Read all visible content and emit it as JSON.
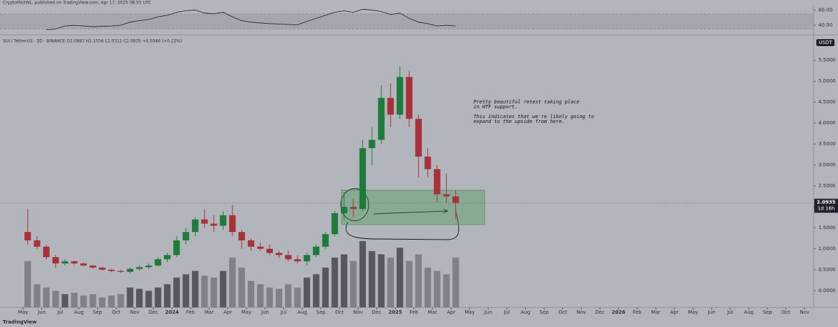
{
  "chart_data": {
    "type": "candlestick",
    "author_line": "CryptoMichNL, published on TradingView.com, Apr 17, 2025 08:55 UTC",
    "symbol_line": "SUI / TetherUS · 3D · BINANCE  O2.0887 H2.1556 L2.0312 C2.0935 +0.0046 (+0.22%)",
    "currency": "USDT",
    "last_price": 2.0935,
    "countdown": "1d 16h",
    "brand": "TradingView",
    "annotation": [
      "Pretty beautiful retest taking place",
      "in HTF support.",
      "This indicates that we're likely going to",
      "expand to the upside from here."
    ],
    "support_zone": [
      1.58,
      2.4
    ],
    "up_color": "#1e7b3c",
    "down_color": "#a8323a",
    "x": [
      0.25,
      0.75,
      1.25,
      1.75,
      2.25,
      2.75,
      3.25,
      3.75,
      4.25,
      4.75,
      5.25,
      5.75,
      6.25,
      6.75,
      7.25,
      7.75,
      8.25,
      8.75,
      9.25,
      9.75,
      10.25,
      10.75,
      11.25,
      11.75,
      12.25,
      12.75,
      13.25,
      13.75,
      14.25,
      14.75,
      15.25,
      15.75,
      16.25,
      16.75,
      17.25,
      17.75,
      18.25,
      18.75,
      19.25,
      19.75,
      20.25,
      20.75,
      21.25,
      21.75,
      22.25,
      22.75,
      23.25
    ],
    "open": [
      1.4,
      1.2,
      1.05,
      0.8,
      0.65,
      0.7,
      0.65,
      0.6,
      0.55,
      0.5,
      0.47,
      0.45,
      0.52,
      0.56,
      0.6,
      0.75,
      0.85,
      1.2,
      1.4,
      1.7,
      1.6,
      1.55,
      1.8,
      1.4,
      1.2,
      1.05,
      1.0,
      0.9,
      0.85,
      0.75,
      0.7,
      0.85,
      1.05,
      1.35,
      1.85,
      2.0,
      1.95,
      3.4,
      3.6,
      4.6,
      4.2,
      5.1,
      4.1,
      3.2,
      2.9,
      2.3,
      2.25
    ],
    "high": [
      1.95,
      1.3,
      1.1,
      0.85,
      0.75,
      0.72,
      0.68,
      0.62,
      0.57,
      0.52,
      0.5,
      0.55,
      0.6,
      0.65,
      0.8,
      0.9,
      1.3,
      1.5,
      1.75,
      1.95,
      1.8,
      1.9,
      2.05,
      1.45,
      1.25,
      1.15,
      1.1,
      0.95,
      0.95,
      0.85,
      0.9,
      1.1,
      1.4,
      1.9,
      2.35,
      2.2,
      3.6,
      3.9,
      4.9,
      4.95,
      5.35,
      5.25,
      4.2,
      3.4,
      3.0,
      2.8,
      2.4
    ],
    "low": [
      1.1,
      1.0,
      0.75,
      0.55,
      0.6,
      0.62,
      0.58,
      0.52,
      0.48,
      0.44,
      0.42,
      0.4,
      0.48,
      0.52,
      0.58,
      0.68,
      0.8,
      1.1,
      1.3,
      1.5,
      1.4,
      1.45,
      1.3,
      1.0,
      0.95,
      0.95,
      0.85,
      0.78,
      0.7,
      0.65,
      0.6,
      0.8,
      1.0,
      1.3,
      1.7,
      1.75,
      1.9,
      3.0,
      3.5,
      3.9,
      4.1,
      3.9,
      2.7,
      2.7,
      2.1,
      2.1,
      1.7
    ],
    "close": [
      1.2,
      1.05,
      0.8,
      0.65,
      0.7,
      0.65,
      0.6,
      0.55,
      0.5,
      0.47,
      0.45,
      0.52,
      0.56,
      0.6,
      0.75,
      0.85,
      1.2,
      1.4,
      1.7,
      1.6,
      1.55,
      1.8,
      1.4,
      1.2,
      1.05,
      1.0,
      0.9,
      0.85,
      0.75,
      0.7,
      0.85,
      1.05,
      1.35,
      1.85,
      2.0,
      1.95,
      3.4,
      3.6,
      4.6,
      4.2,
      5.1,
      4.1,
      3.2,
      2.9,
      2.3,
      2.25,
      2.09
    ],
    "volume": [
      70,
      35,
      30,
      25,
      20,
      22,
      18,
      20,
      15,
      18,
      20,
      30,
      28,
      25,
      30,
      35,
      45,
      50,
      55,
      48,
      45,
      55,
      75,
      60,
      40,
      35,
      30,
      28,
      35,
      30,
      45,
      50,
      60,
      75,
      80,
      70,
      100,
      85,
      80,
      75,
      90,
      70,
      80,
      60,
      55,
      50,
      75
    ],
    "ylim": [
      -0.4,
      6.07
    ],
    "yticks": [
      {
        "value": 0,
        "label": "0.0000"
      },
      {
        "value": 0.5,
        "label": "0.5000"
      },
      {
        "value": 1,
        "label": "1.0000"
      },
      {
        "value": 1.5,
        "label": "1.5000"
      },
      {
        "value": 2,
        "label": "2.0000"
      },
      {
        "value": 2.5,
        "label": "2.5000"
      },
      {
        "value": 3,
        "label": "3.0000"
      },
      {
        "value": 3.5,
        "label": "3.5000"
      },
      {
        "value": 4,
        "label": "4.0000"
      },
      {
        "value": 4.5,
        "label": "4.5000"
      },
      {
        "value": 5,
        "label": "5.0000"
      },
      {
        "value": 5.5,
        "label": "5.5000"
      }
    ],
    "xlim": [
      -1.24,
      42.48
    ],
    "xticks": [
      {
        "value": 0,
        "label": "May"
      },
      {
        "value": 1,
        "label": "Jun"
      },
      {
        "value": 2,
        "label": "Jul"
      },
      {
        "value": 3,
        "label": "Aug"
      },
      {
        "value": 4,
        "label": "Sep"
      },
      {
        "value": 5,
        "label": "Oct"
      },
      {
        "value": 6,
        "label": "Nov"
      },
      {
        "value": 7,
        "label": "Dec"
      },
      {
        "value": 8,
        "label": "2024"
      },
      {
        "value": 9,
        "label": "Feb"
      },
      {
        "value": 10,
        "label": "Mar"
      },
      {
        "value": 11,
        "label": "Apr"
      },
      {
        "value": 12,
        "label": "May"
      },
      {
        "value": 13,
        "label": "Jun"
      },
      {
        "value": 14,
        "label": "Jul"
      },
      {
        "value": 15,
        "label": "Aug"
      },
      {
        "value": 16,
        "label": "Sep"
      },
      {
        "value": 17,
        "label": "Oct"
      },
      {
        "value": 18,
        "label": "Nov"
      },
      {
        "value": 19,
        "label": "Dec"
      },
      {
        "value": 20,
        "label": "2025"
      },
      {
        "value": 21,
        "label": "Feb"
      },
      {
        "value": 22,
        "label": "Mar"
      },
      {
        "value": 23,
        "label": "Apr"
      },
      {
        "value": 24,
        "label": "May"
      },
      {
        "value": 25,
        "label": "Jun"
      },
      {
        "value": 26,
        "label": "Jul"
      },
      {
        "value": 27,
        "label": "Aug"
      },
      {
        "value": 28,
        "label": "Sep"
      },
      {
        "value": 29,
        "label": "Oct"
      },
      {
        "value": 30,
        "label": "Nov"
      },
      {
        "value": 31,
        "label": "Dec"
      },
      {
        "value": 32,
        "label": "2026"
      },
      {
        "value": 33,
        "label": "Feb"
      },
      {
        "value": 34,
        "label": "Mar"
      },
      {
        "value": 35,
        "label": "Apr"
      },
      {
        "value": 36,
        "label": "May"
      },
      {
        "value": 37,
        "label": "Jun"
      },
      {
        "value": 38,
        "label": "Jul"
      },
      {
        "value": 39,
        "label": "Aug"
      },
      {
        "value": 40,
        "label": "Sep"
      },
      {
        "value": 41,
        "label": "Oct"
      },
      {
        "value": 42,
        "label": "Nov"
      }
    ],
    "rsi": {
      "values": [
        null,
        null,
        28,
        30,
        38,
        40,
        38,
        36,
        37,
        38,
        40,
        48,
        52,
        55,
        62,
        66,
        74,
        78,
        80,
        72,
        70,
        74,
        62,
        52,
        48,
        46,
        44,
        43,
        42,
        41,
        50,
        58,
        66,
        74,
        78,
        74,
        82,
        80,
        76,
        68,
        72,
        58,
        48,
        44,
        38,
        40,
        38
      ],
      "ylim": [
        18,
        88
      ],
      "band": [
        30,
        70
      ],
      "yticks": [
        {
          "value": 80,
          "label": "80.00"
        },
        {
          "value": 40,
          "label": "40.00"
        }
      ]
    }
  }
}
